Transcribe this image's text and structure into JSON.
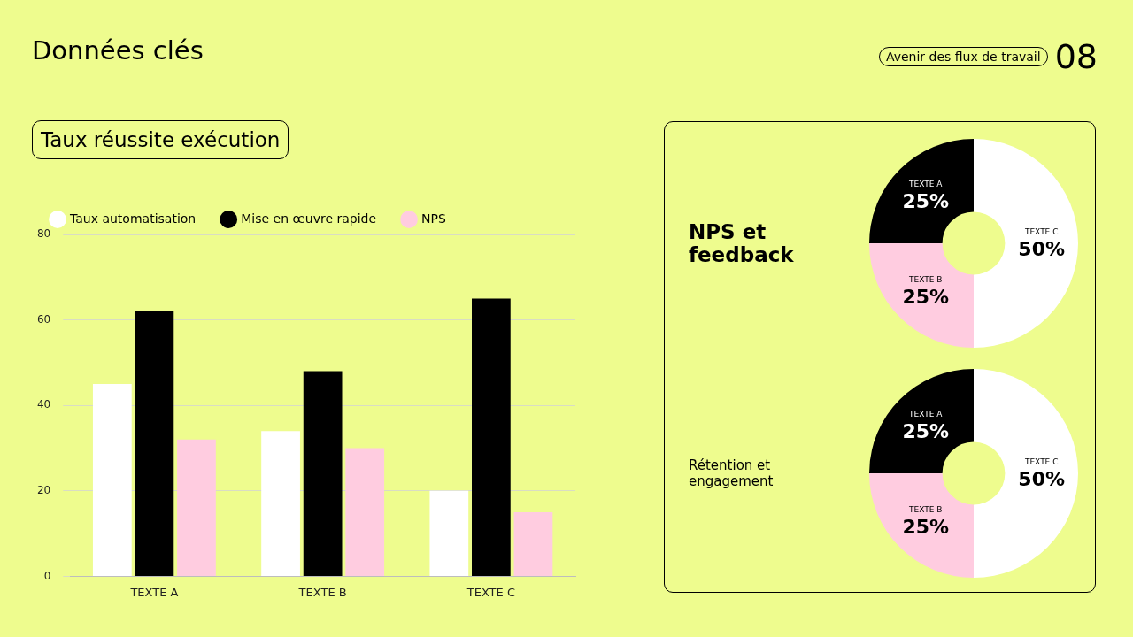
{
  "chart_data": [
    {
      "type": "bar",
      "title": "Taux réussite exécution",
      "annotations": [
        "Données clés",
        "Avenir des flux de travail",
        "08"
      ],
      "categories": [
        "TEXTE A",
        "TEXTE B",
        "TEXTE C"
      ],
      "series": [
        {
          "name": "Taux automatisation",
          "color": "#ffffff",
          "values": [
            45,
            34,
            20
          ]
        },
        {
          "name": "Mise en œuvre rapide",
          "color": "#000000",
          "values": [
            62,
            48,
            65
          ]
        },
        {
          "name": "NPS",
          "color": "#ffcce0",
          "values": [
            32,
            30,
            15
          ]
        }
      ],
      "ylim": [
        0,
        80
      ],
      "yticks": [
        0,
        20,
        40,
        60,
        80
      ],
      "grid": "y",
      "legend": "top left"
    },
    {
      "type": "donut",
      "title": "NPS et feedback",
      "categories": [
        "TEXTE C",
        "TEXTE B",
        "TEXTE A"
      ],
      "values": [
        50,
        25,
        25
      ],
      "colors": [
        "#ffffff",
        "#ffcce0",
        "#000000"
      ],
      "value_labels": [
        "50%",
        "25%",
        "25%"
      ]
    },
    {
      "type": "donut",
      "title": "Rétention et engagement",
      "categories": [
        "TEXTE C",
        "TEXTE B",
        "TEXTE A"
      ],
      "values": [
        50,
        25,
        25
      ],
      "colors": [
        "#ffffff",
        "#ffcce0",
        "#000000"
      ],
      "value_labels": [
        "50%",
        "25%",
        "25%"
      ]
    }
  ]
}
